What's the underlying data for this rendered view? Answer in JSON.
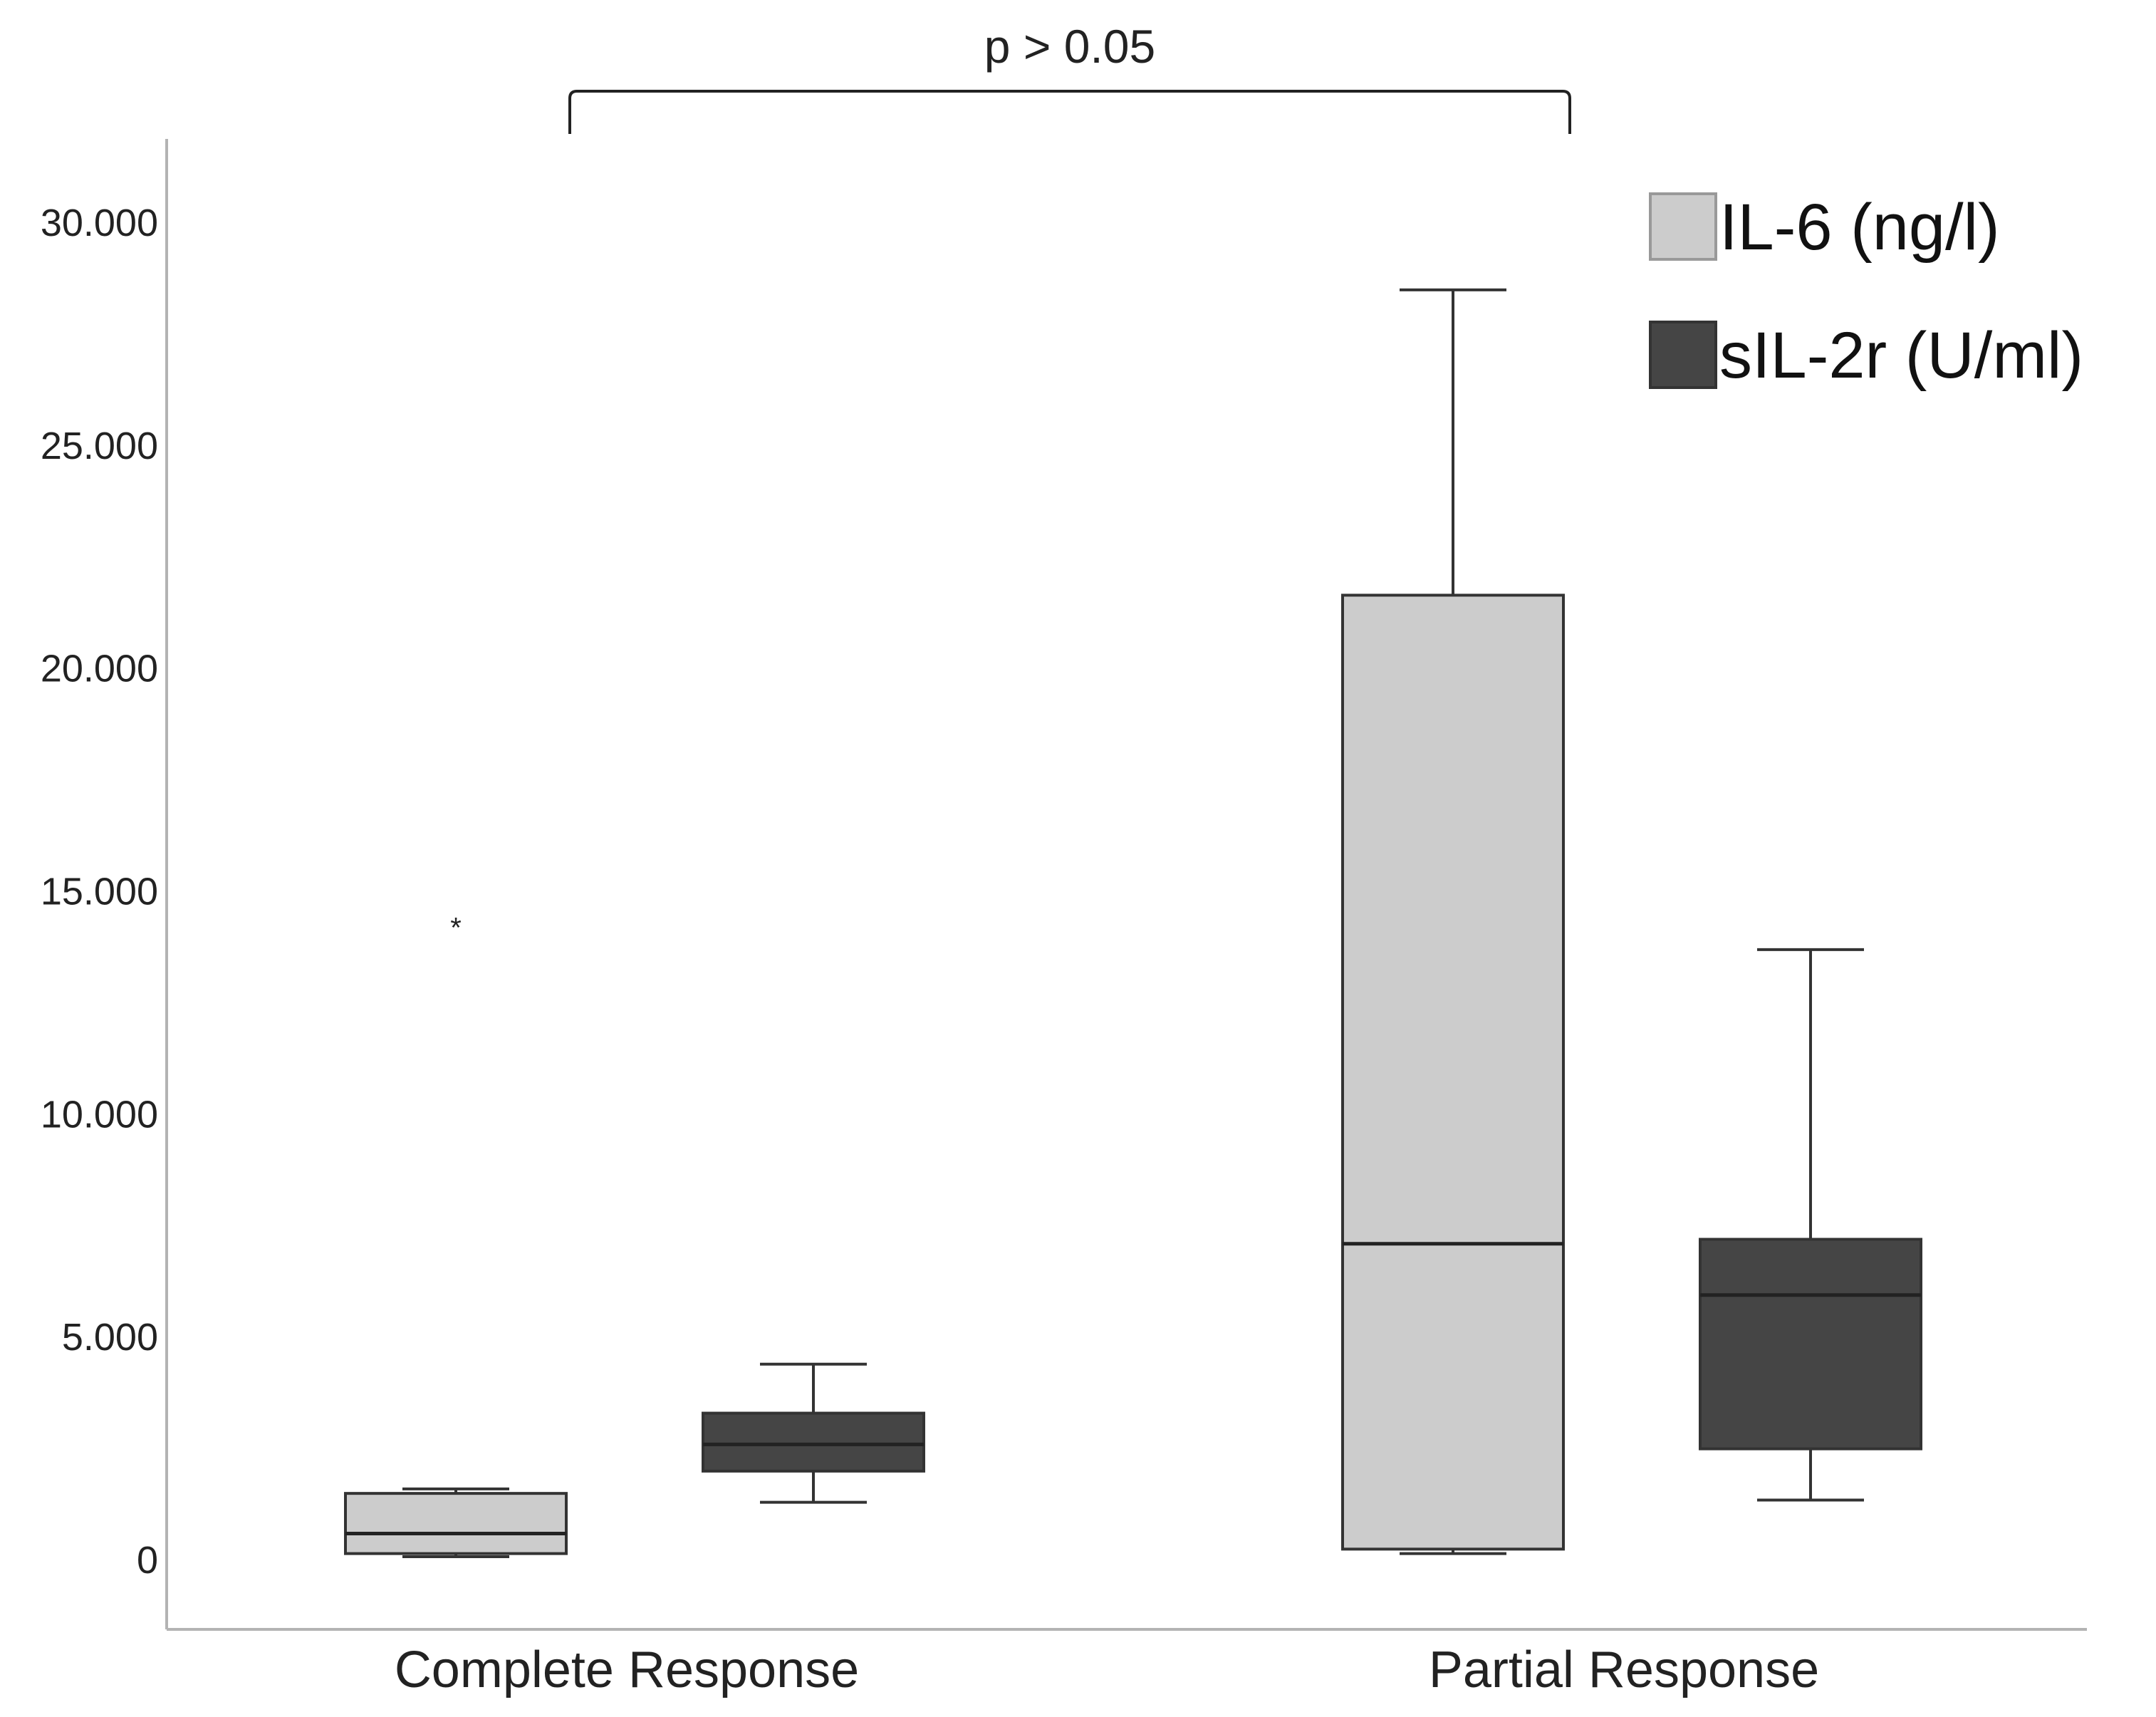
{
  "chart_data": {
    "type": "box",
    "title": "",
    "xlabel": "",
    "ylabel": "",
    "categories": [
      "Complete Response",
      "Partial Response"
    ],
    "y_ticks": [
      {
        "value": 0,
        "label": "0"
      },
      {
        "value": 5000,
        "label": "5.000"
      },
      {
        "value": 10000,
        "label": "10.000"
      },
      {
        "value": 15000,
        "label": "15.000"
      },
      {
        "value": 20000,
        "label": "20.000"
      },
      {
        "value": 25000,
        "label": "25.000"
      },
      {
        "value": 30000,
        "label": "30.000"
      }
    ],
    "ylim": [
      -1700,
      31800
    ],
    "grid": false,
    "legend_position": "top-right",
    "series": [
      {
        "name": "IL-6 (ng/l)",
        "color": "#cccccc",
        "boxes": [
          {
            "category": "Complete Response",
            "min": 80,
            "q1": 150,
            "median": 600,
            "q3": 1500,
            "max": 1600,
            "outliers": [
              14200
            ]
          },
          {
            "category": "Partial Response",
            "min": 150,
            "q1": 250,
            "median": 7100,
            "q3": 21650,
            "max": 28500,
            "outliers": []
          }
        ]
      },
      {
        "name": "sIL-2r (U/ml)",
        "color": "#454545",
        "boxes": [
          {
            "category": "Complete Response",
            "min": 1300,
            "q1": 2000,
            "median": 2600,
            "q3": 3300,
            "max": 4400,
            "outliers": []
          },
          {
            "category": "Partial Response",
            "min": 1350,
            "q1": 2500,
            "median": 5950,
            "q3": 7200,
            "max": 13700,
            "outliers": []
          }
        ]
      }
    ],
    "annotations": [
      {
        "text": "p > 0.05",
        "type": "significance-bracket",
        "from_category": "Complete Response",
        "to_category": "Partial Response"
      }
    ]
  }
}
